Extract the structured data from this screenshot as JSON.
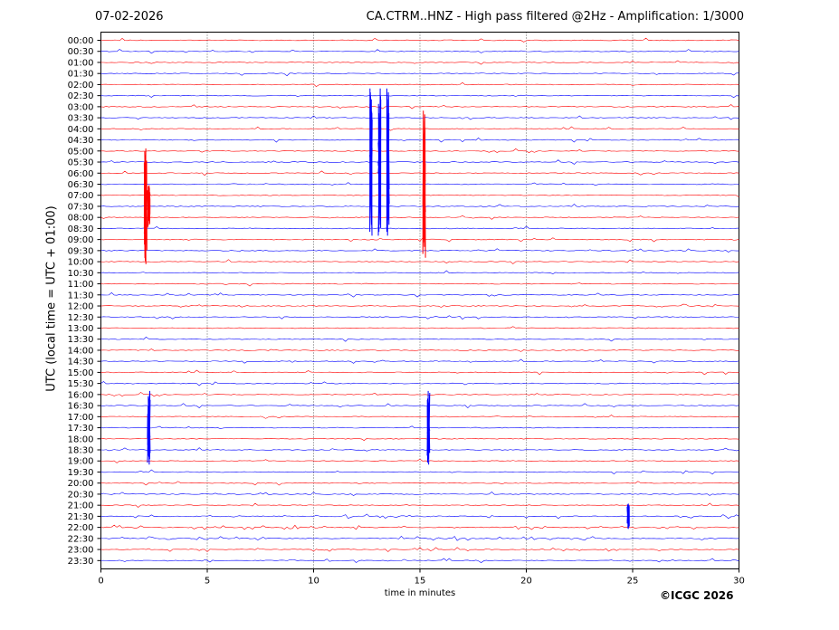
{
  "header": {
    "date": "07-02-2026",
    "title": "CA.CTRM..HNZ - High pass filtered @2Hz - Amplification: 1/3000"
  },
  "copyright": "©ICGC 2026",
  "chart_data": {
    "type": "line",
    "title": "CA.CTRM..HNZ - High pass filtered @2Hz - Amplification: 1/3000",
    "xlabel": "time in minutes",
    "ylabel": "UTC (local time = UTC + 01:00)",
    "xlim": [
      0,
      30
    ],
    "x_ticks": [
      0,
      5,
      10,
      15,
      20,
      25,
      30
    ],
    "grid": "vertical dotted lines at x ticks",
    "trace_colors": [
      "#ff0000",
      "#0000ff"
    ],
    "rows": [
      "00:00",
      "00:30",
      "01:00",
      "01:30",
      "02:00",
      "02:30",
      "03:00",
      "03:30",
      "04:00",
      "04:30",
      "05:00",
      "05:30",
      "06:00",
      "06:30",
      "07:00",
      "07:30",
      "08:00",
      "08:30",
      "09:00",
      "09:30",
      "10:00",
      "10:30",
      "11:00",
      "11:30",
      "12:00",
      "12:30",
      "13:00",
      "13:30",
      "14:00",
      "14:30",
      "15:00",
      "15:30",
      "16:00",
      "16:30",
      "17:00",
      "17:30",
      "18:00",
      "18:30",
      "19:00",
      "19:30",
      "20:00",
      "20:30",
      "21:00",
      "21:30",
      "22:00",
      "22:30",
      "23:00",
      "23:30"
    ],
    "events": [
      {
        "row": 15,
        "minute": 2.1,
        "amplitude": 5.5,
        "color": "#ff0000"
      },
      {
        "row": 15,
        "minute": 2.25,
        "amplitude": 2.0,
        "color": "#ff0000"
      },
      {
        "row": 11,
        "minute": 12.7,
        "amplitude": 7.0,
        "color": "#0000ff"
      },
      {
        "row": 11,
        "minute": 13.1,
        "amplitude": 7.0,
        "color": "#0000ff"
      },
      {
        "row": 11,
        "minute": 13.5,
        "amplitude": 7.0,
        "color": "#0000ff"
      },
      {
        "row": 13,
        "minute": 15.2,
        "amplitude": 7.0,
        "color": "#ff0000"
      },
      {
        "row": 35,
        "minute": 2.25,
        "amplitude": 3.5,
        "color": "#0000ff"
      },
      {
        "row": 35,
        "minute": 15.4,
        "amplitude": 3.5,
        "color": "#0000ff"
      },
      {
        "row": 43,
        "minute": 24.8,
        "amplitude": 1.2,
        "color": "#0000ff"
      }
    ]
  }
}
